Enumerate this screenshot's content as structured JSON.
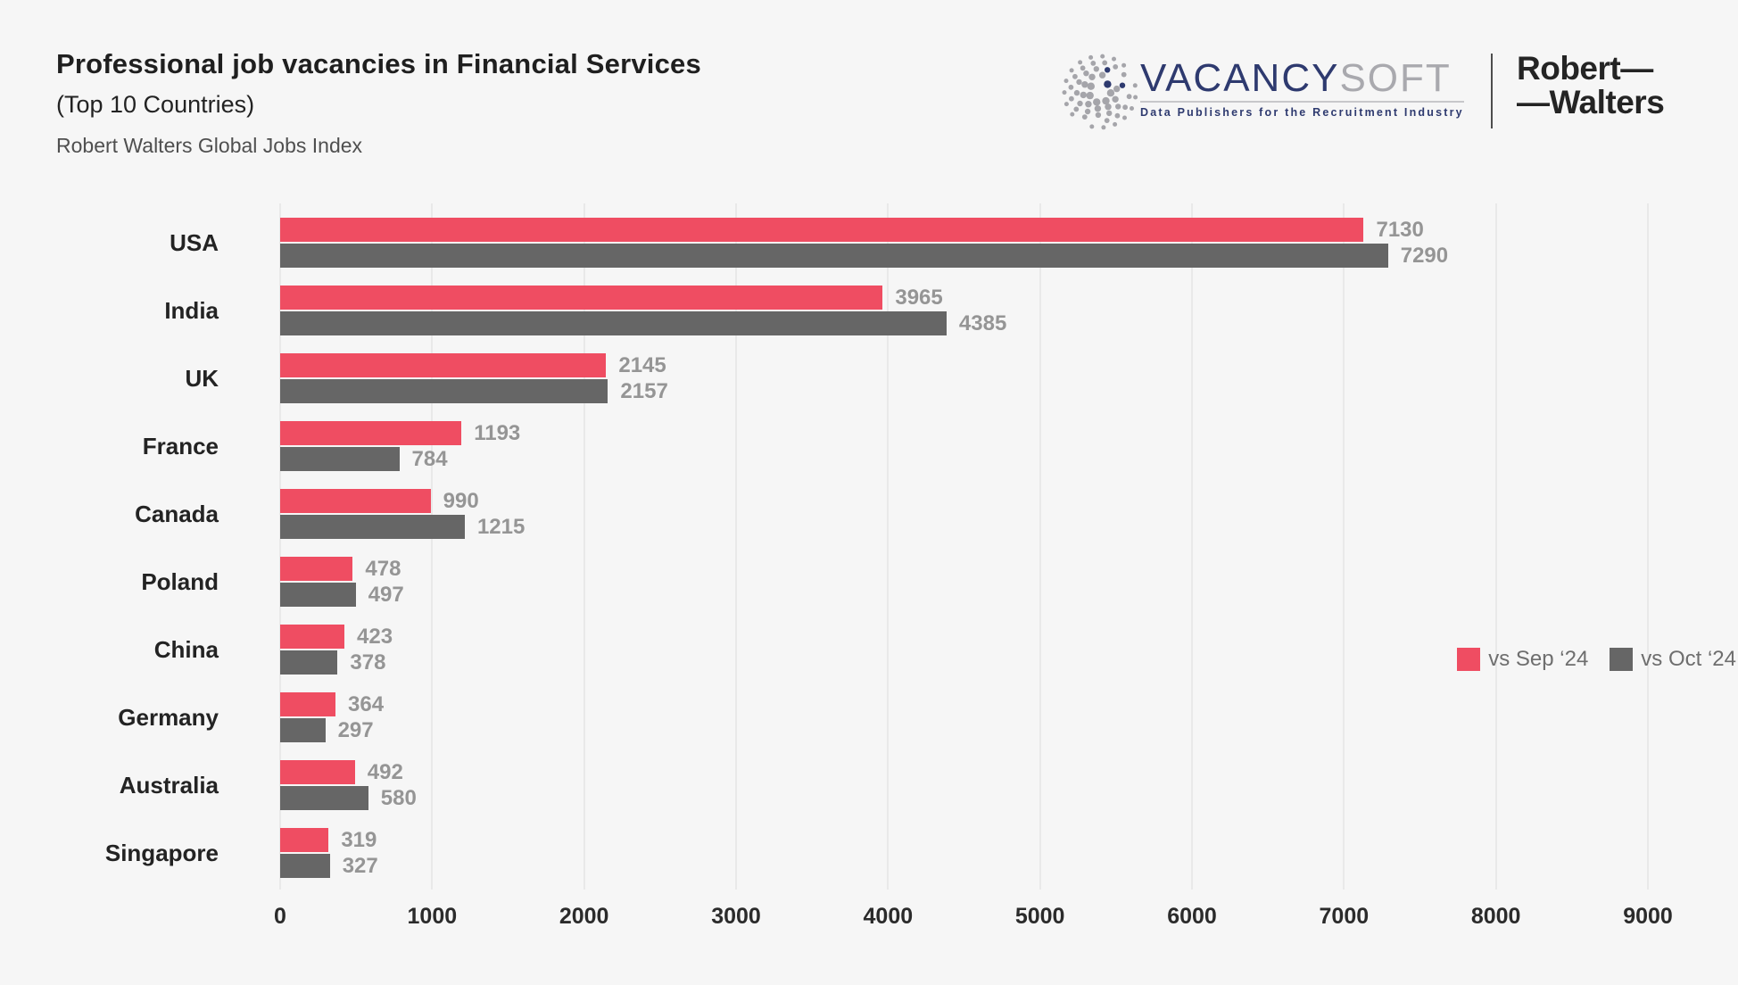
{
  "header": {
    "title": "Professional job vacancies in Financial Services",
    "subtitle": "(Top 10 Countries)",
    "source": "Robert Walters Global Jobs Index"
  },
  "branding": {
    "vacancysoft": {
      "word_primary": "VACANCY",
      "word_secondary": "SOFT",
      "tagline": "Data Publishers for the Recruitment Industry",
      "navy": "#2e3a6f",
      "silver": "#a9a9ae"
    },
    "robert_walters": {
      "line1": "Robert—",
      "line2": "—Walters"
    }
  },
  "chart_data": {
    "type": "bar",
    "orientation": "horizontal",
    "title": "Professional job vacancies in Financial Services (Top 10 Countries)",
    "categories": [
      "USA",
      "India",
      "UK",
      "France",
      "Canada",
      "Poland",
      "China",
      "Germany",
      "Australia",
      "Singapore"
    ],
    "series": [
      {
        "name": "vs Sep ‘24",
        "color": "#ef4d62",
        "values": [
          7130,
          3965,
          2145,
          1193,
          990,
          478,
          423,
          364,
          492,
          319
        ]
      },
      {
        "name": "vs Oct ‘24",
        "color": "#666666",
        "values": [
          7290,
          4385,
          2157,
          784,
          1215,
          497,
          378,
          297,
          580,
          327
        ]
      }
    ],
    "xlim": [
      0,
      9000
    ],
    "x_ticks": [
      0,
      1000,
      2000,
      3000,
      4000,
      5000,
      6000,
      7000,
      8000,
      9000
    ],
    "grid": true,
    "legend_position": "bottom-right",
    "background": "#f6f6f6",
    "gridline_color": "#e9e9e9",
    "value_label_color": "#959595"
  }
}
